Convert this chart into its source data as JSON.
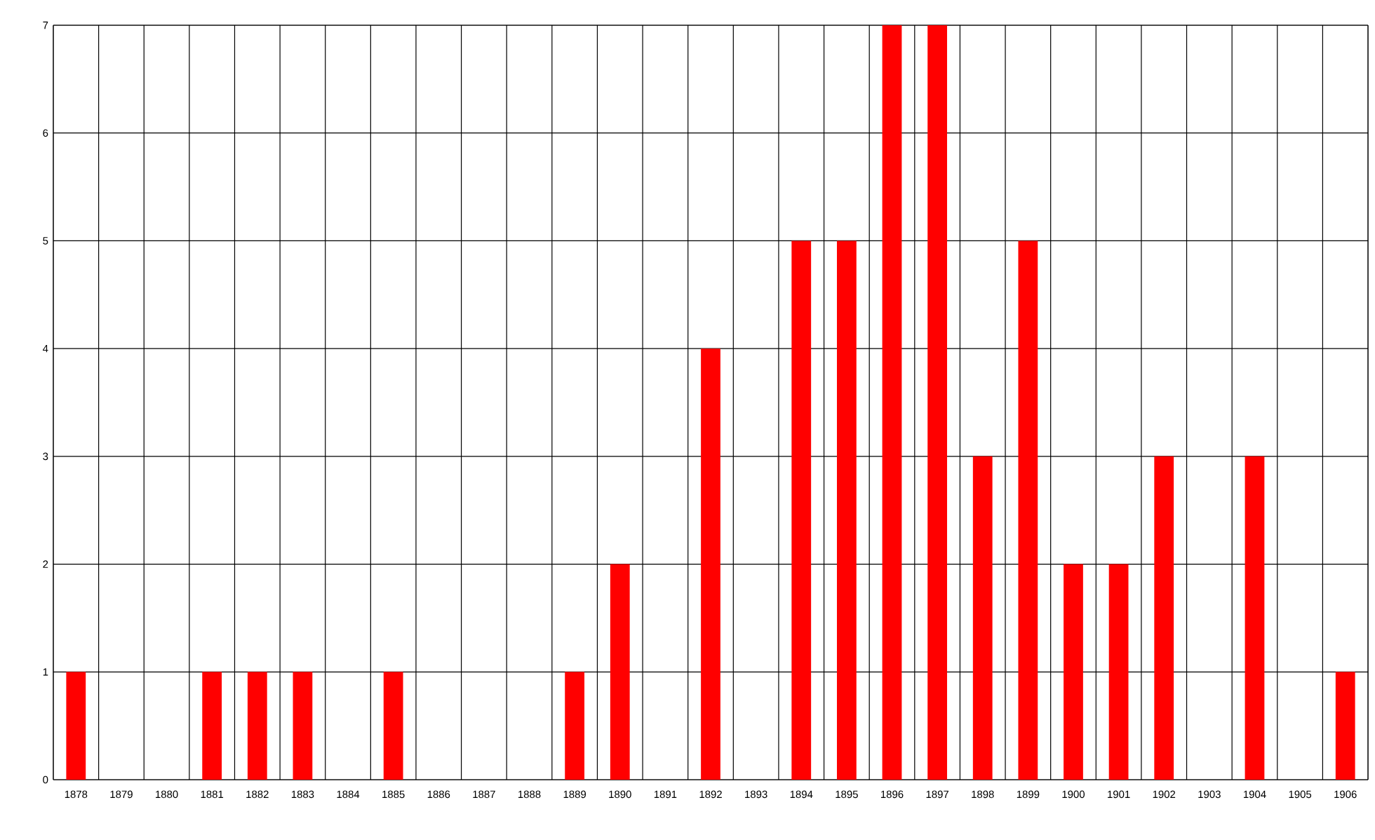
{
  "chart_data": {
    "type": "bar",
    "categories": [
      "1878",
      "1879",
      "1880",
      "1881",
      "1882",
      "1883",
      "1884",
      "1885",
      "1886",
      "1887",
      "1888",
      "1889",
      "1890",
      "1891",
      "1892",
      "1893",
      "1894",
      "1895",
      "1896",
      "1897",
      "1898",
      "1899",
      "1900",
      "1901",
      "1902",
      "1903",
      "1904",
      "1905",
      "1906"
    ],
    "values": [
      1,
      0,
      0,
      1,
      1,
      1,
      0,
      1,
      0,
      0,
      0,
      1,
      2,
      0,
      4,
      0,
      5,
      5,
      7,
      7,
      3,
      5,
      2,
      2,
      3,
      0,
      3,
      0,
      1
    ],
    "color": "#ff0000",
    "ylim": [
      0,
      7
    ],
    "yticks": [
      0,
      1,
      2,
      3,
      4,
      5,
      6,
      7
    ],
    "grid": true
  }
}
